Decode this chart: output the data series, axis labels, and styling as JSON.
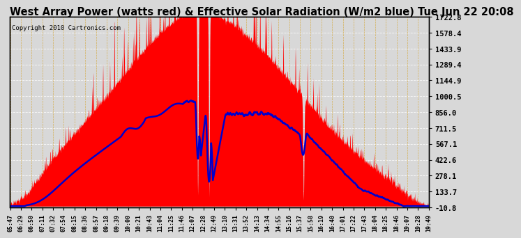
{
  "title": "West Array Power (watts red) & Effective Solar Radiation (W/m2 blue) Tue Jun 22 20:08",
  "copyright": "Copyright 2010 Cartronics.com",
  "title_fontsize": 10.5,
  "background_color": "#c8c8c8",
  "plot_bg_color": "#d8d8d8",
  "grid_color": "#ffffff",
  "grid_color2": "#e8a000",
  "yticks": [
    -10.8,
    133.7,
    278.1,
    422.6,
    567.1,
    711.5,
    856.0,
    1000.5,
    1144.9,
    1289.4,
    1433.9,
    1578.4,
    1722.8
  ],
  "ymin": -10.8,
  "ymax": 1722.8,
  "xtick_labels": [
    "05:47",
    "06:29",
    "06:50",
    "07:11",
    "07:32",
    "07:54",
    "08:15",
    "08:36",
    "08:57",
    "09:18",
    "09:39",
    "10:00",
    "10:21",
    "10:43",
    "11:04",
    "11:25",
    "11:46",
    "12:07",
    "12:28",
    "12:49",
    "13:10",
    "13:31",
    "13:52",
    "14:13",
    "14:34",
    "14:55",
    "15:16",
    "15:37",
    "15:58",
    "16:19",
    "16:40",
    "17:01",
    "17:22",
    "17:43",
    "18:04",
    "18:25",
    "18:46",
    "19:07",
    "19:28",
    "19:49"
  ],
  "red_color": "#ff0000",
  "blue_color": "#0000cc",
  "border_color": "#000000",
  "title_color": "#000000",
  "label_color": "#000000",
  "tick_color": "#000000",
  "copyright_color": "#000000"
}
